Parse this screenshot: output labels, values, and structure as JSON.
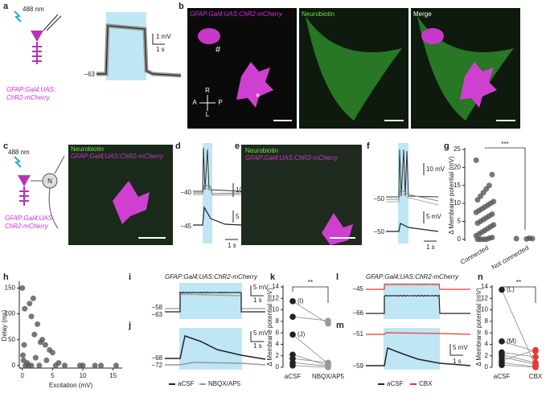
{
  "panels": {
    "a": {
      "label": "a",
      "light": "488 nm",
      "genotype": [
        "GFAP:Gal4;UAS:",
        "ChR2-mCherry"
      ],
      "scale_v": "1 mV",
      "scale_t": "1 s",
      "baseline": "−63"
    },
    "b": {
      "label": "b",
      "images": [
        "GFAP:Gal4;UAS:ChR2-mCherry",
        "Neurobiotin",
        "Merge"
      ],
      "marks": [
        "#",
        "*"
      ],
      "axes": [
        "R",
        "L",
        "A",
        "P"
      ]
    },
    "c": {
      "label": "c",
      "light": "488 nm",
      "neuron": "N",
      "genotype": [
        "GFAP:Gal4;UAS:",
        "ChR2-mCherry"
      ],
      "stains": [
        "Neurobiotin",
        "GFAP:Gal4;UAS:ChR2-mCherry"
      ]
    },
    "d": {
      "label": "d",
      "top_baseline": "−40",
      "top_scale": "10 mV",
      "bottom_baseline": "−45",
      "bottom_scale": "5 mV",
      "scale_t": "1 s"
    },
    "e": {
      "label": "e",
      "stains": [
        "Neurobiotin",
        "GFAP:Gal4;UAS:ChR2-mCherry"
      ]
    },
    "f": {
      "label": "f",
      "top_scale": "10 mV",
      "top_baseline": "−50",
      "bottom_scale": "5 mV",
      "bottom_baseline": "−50",
      "scale_t": "1 s"
    },
    "i": {
      "label": "i",
      "genotype": "GFAP:Gal4;UAS:ChR2-mCherry",
      "scale_v": "5 mV",
      "scale_t": "1 s",
      "baselines": [
        "−58",
        "−63"
      ]
    },
    "j": {
      "label": "j",
      "scale_v": "5 mV",
      "scale_t": "1 s",
      "baselines": [
        "−68",
        "−72"
      ],
      "legend": [
        "aCSF",
        "NBQX/AP5"
      ]
    },
    "l": {
      "label": "l",
      "genotype": "GFAP:Gal4;UAS:ChR2-mCherry",
      "baselines": [
        "−45",
        "−66"
      ]
    },
    "m": {
      "label": "m",
      "scale_v": "5 mV",
      "scale_t": "1 s",
      "baselines": [
        "−51",
        "−59"
      ],
      "legend": [
        "aCSF",
        "CBX"
      ]
    }
  },
  "chart_data": [
    {
      "type": "strip",
      "label": "g",
      "ylabel": "Δ Membrane potential (mV)",
      "significance": "***",
      "categories": [
        "Connected",
        "Not connected"
      ],
      "series": [
        {
          "color": "#555555",
          "values": [
            22,
            18,
            15,
            14,
            13,
            12,
            11,
            10.5,
            10,
            9.5,
            9,
            8.5,
            8,
            7.5,
            7,
            6.5,
            6,
            5.5,
            5,
            4.5,
            4,
            3.5,
            3,
            2.5,
            2,
            1.5,
            1,
            0.5,
            0.3,
            0,
            0,
            0,
            0
          ]
        },
        {
          "color": "#555555",
          "values": [
            0.2,
            0.2,
            0.3,
            0.1
          ]
        }
      ],
      "ylim": [
        -0.5,
        25
      ],
      "yticks": [
        0,
        5,
        10,
        15,
        20,
        25
      ]
    },
    {
      "type": "scatter",
      "label": "h",
      "xlabel": "Excitation (mV)",
      "ylabel": "Delay (ms)",
      "color": "#555555",
      "x": [
        0,
        0.3,
        0.2,
        0.5,
        0.8,
        1,
        1.2,
        1.5,
        1.8,
        2,
        2.2,
        2.5,
        3,
        3.3,
        3.8,
        4,
        4.5,
        5,
        5.5,
        6,
        7,
        9.5,
        10,
        12,
        13,
        15.5,
        0.4,
        0.1,
        1.5,
        2.8
      ],
      "values": [
        150,
        40,
        10,
        0,
        5,
        0,
        120,
        95,
        130,
        60,
        15,
        80,
        45,
        50,
        40,
        10,
        30,
        25,
        0,
        5,
        0,
        0,
        0,
        0,
        0,
        0,
        110,
        20,
        0,
        0
      ],
      "xlim": [
        -0.5,
        16.5
      ],
      "ylim": [
        -5,
        160
      ],
      "xticks": [
        0,
        5,
        10,
        15
      ],
      "yticks": [
        0,
        50,
        100,
        150
      ]
    },
    {
      "type": "paired",
      "label": "k",
      "ylabel": "Δ Membrane potential (mV)",
      "significance": "**",
      "categories": [
        "aCSF",
        "NBQX/AP5"
      ],
      "category_colors": [
        "#222222",
        "#999999"
      ],
      "series": [
        {
          "label": "(I)",
          "values": [
            11.5,
            7.6
          ]
        },
        {
          "values": [
            8.8,
            8.1
          ]
        },
        {
          "label": "(J)",
          "values": [
            5.7,
            0.6
          ]
        },
        {
          "values": [
            2.2,
            0.3
          ]
        },
        {
          "values": [
            1.5,
            0.8
          ]
        },
        {
          "values": [
            0.8,
            0.2
          ]
        },
        {
          "values": [
            0.3,
            0
          ]
        }
      ],
      "ylim": [
        0,
        14
      ],
      "yticks": [
        0,
        2,
        4,
        6,
        8,
        10,
        12,
        14
      ]
    },
    {
      "type": "paired",
      "label": "n",
      "ylabel": "Δ Membrane potential (mV)",
      "significance": "**",
      "categories": [
        "aCSF",
        "CBX"
      ],
      "category_colors": [
        "#222222",
        "#e8392c"
      ],
      "series": [
        {
          "label": "(L)",
          "values": [
            13.5,
            0.2
          ]
        },
        {
          "label": "(M)",
          "values": [
            4.5,
            2.8
          ]
        },
        {
          "values": [
            2.6,
            1.8
          ]
        },
        {
          "values": [
            2.2,
            0.8
          ]
        },
        {
          "values": [
            1.8,
            0.5
          ]
        },
        {
          "values": [
            1.2,
            3
          ]
        },
        {
          "values": [
            0.8,
            0.1
          ]
        },
        {
          "values": [
            0.4,
            0
          ]
        }
      ],
      "ylim": [
        0,
        14
      ],
      "yticks": [
        0,
        2,
        4,
        6,
        8,
        10,
        12,
        14
      ]
    }
  ]
}
